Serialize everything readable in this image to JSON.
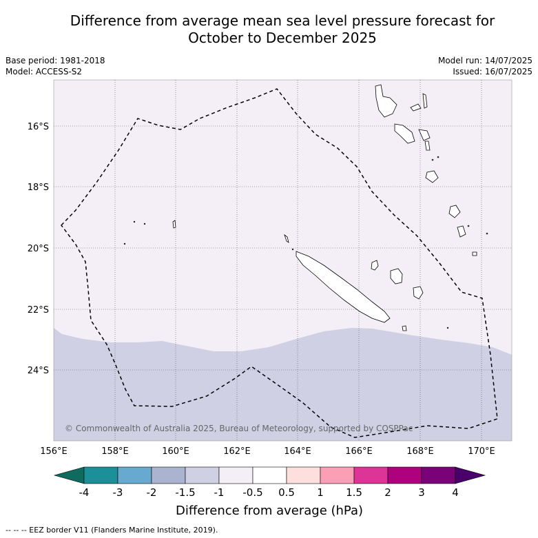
{
  "title_line1": "Difference from average mean sea level pressure forecast for",
  "title_line2": "October to December 2025",
  "meta_left": [
    "Base period: 1981-2018",
    "Model: ACCESS-S2"
  ],
  "meta_right": [
    "Model run: 14/07/2025",
    "Issued: 16/07/2025"
  ],
  "copyright": "© Commonwealth of Australia 2025, Bureau of Meteorology, supported by COSPPac",
  "lon_labels": [
    "156°E",
    "158°E",
    "160°E",
    "162°E",
    "164°E",
    "166°E",
    "168°E",
    "170°E"
  ],
  "lat_labels": [
    "16°S",
    "18°S",
    "20°S",
    "22°S",
    "24°S"
  ],
  "colorbar_ticks": [
    "-4",
    "-3",
    "-2",
    "-1.5",
    "-1",
    "-0.5",
    "0.5",
    "1",
    "1.5",
    "2",
    "3",
    "4"
  ],
  "colorbar_label": "Difference from average (hPa)",
  "colorbar_colors": [
    "#0f6b5e",
    "#1c9099",
    "#67a9cf",
    "#aab4d0",
    "#cfd0e4",
    "#f4eef6",
    "#ffffff",
    "#fde0dd",
    "#fa9fb5",
    "#dd3497",
    "#ae017e",
    "#7a0177",
    "#49006a"
  ],
  "field_colors": {
    "upper": "#f4eef6",
    "lower": "#cfd0e4"
  },
  "footnote": "-- -- -- EEZ border V11 (Flanders Marine Institute, 2019)."
}
